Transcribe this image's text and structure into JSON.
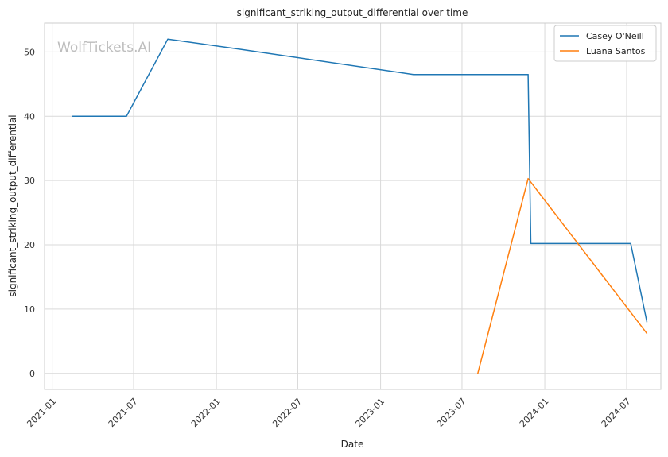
{
  "chart_data": {
    "type": "line",
    "title": "significant_striking_output_differential over time",
    "xlabel": "Date",
    "ylabel": "significant_striking_output_differential",
    "watermark": "WolfTickets.AI",
    "x_type": "date",
    "xlim": [
      "2020-12-15",
      "2024-09-15"
    ],
    "ylim": [
      -2.5,
      54.5
    ],
    "x_ticks": [
      "2021-01",
      "2021-07",
      "2022-01",
      "2022-07",
      "2023-01",
      "2023-07",
      "2024-01",
      "2024-07"
    ],
    "y_ticks": [
      0,
      10,
      20,
      30,
      40,
      50
    ],
    "grid": true,
    "legend": "top-right",
    "series": [
      {
        "name": "Casey O'Neill",
        "color": "#1f77b4",
        "points": [
          {
            "x": "2021-02-15",
            "y": 40
          },
          {
            "x": "2021-06-15",
            "y": 40
          },
          {
            "x": "2021-09-15",
            "y": 52
          },
          {
            "x": "2022-02-15",
            "y": 50.5
          },
          {
            "x": "2023-03-15",
            "y": 46.5
          },
          {
            "x": "2023-11-25",
            "y": 46.5
          },
          {
            "x": "2023-12-01",
            "y": 20.2
          },
          {
            "x": "2024-07-10",
            "y": 20.2
          },
          {
            "x": "2024-08-15",
            "y": 8
          }
        ]
      },
      {
        "name": "Luana Santos",
        "color": "#ff7f0e",
        "points": [
          {
            "x": "2023-08-05",
            "y": 0
          },
          {
            "x": "2023-11-25",
            "y": 30.3
          },
          {
            "x": "2024-08-15",
            "y": 6.2
          }
        ]
      }
    ]
  }
}
